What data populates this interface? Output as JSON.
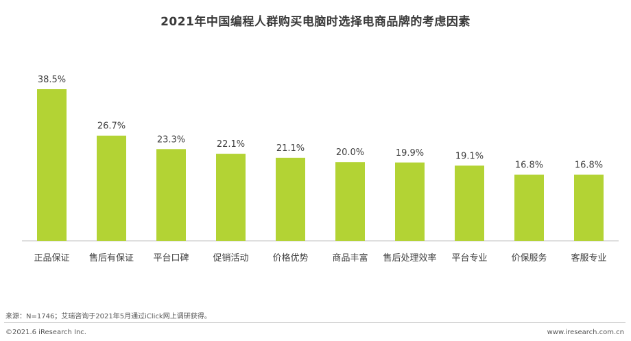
{
  "title": "2021年中国编程人群购买电脑时选择电商品牌的考虑因素",
  "chart_data": {
    "type": "bar",
    "title": "2021年中国编程人群购买电脑时选择电商品牌的考虑因素",
    "categories": [
      "正品保证",
      "售后有保证",
      "平台口碑",
      "促销活动",
      "价格优势",
      "商品丰富",
      "售后处理效率",
      "平台专业",
      "价保服务",
      "客服专业"
    ],
    "values": [
      38.5,
      26.7,
      23.3,
      22.1,
      21.1,
      20.0,
      19.9,
      19.1,
      16.8,
      16.8
    ],
    "value_labels": [
      "38.5%",
      "26.7%",
      "23.3%",
      "22.1%",
      "21.1%",
      "20.0%",
      "19.9%",
      "19.1%",
      "16.8%",
      "16.8%"
    ],
    "bar_color": "#b3d334",
    "ylim": [
      0,
      38.5
    ],
    "grid": false,
    "xlabel": "",
    "ylabel": ""
  },
  "footer": {
    "source": "来源：N=1746；艾瑞咨询于2021年5月通过iClick网上调研获得。",
    "copyright": "©2021.6 iResearch Inc.",
    "website": "www.iresearch.com.cn"
  }
}
